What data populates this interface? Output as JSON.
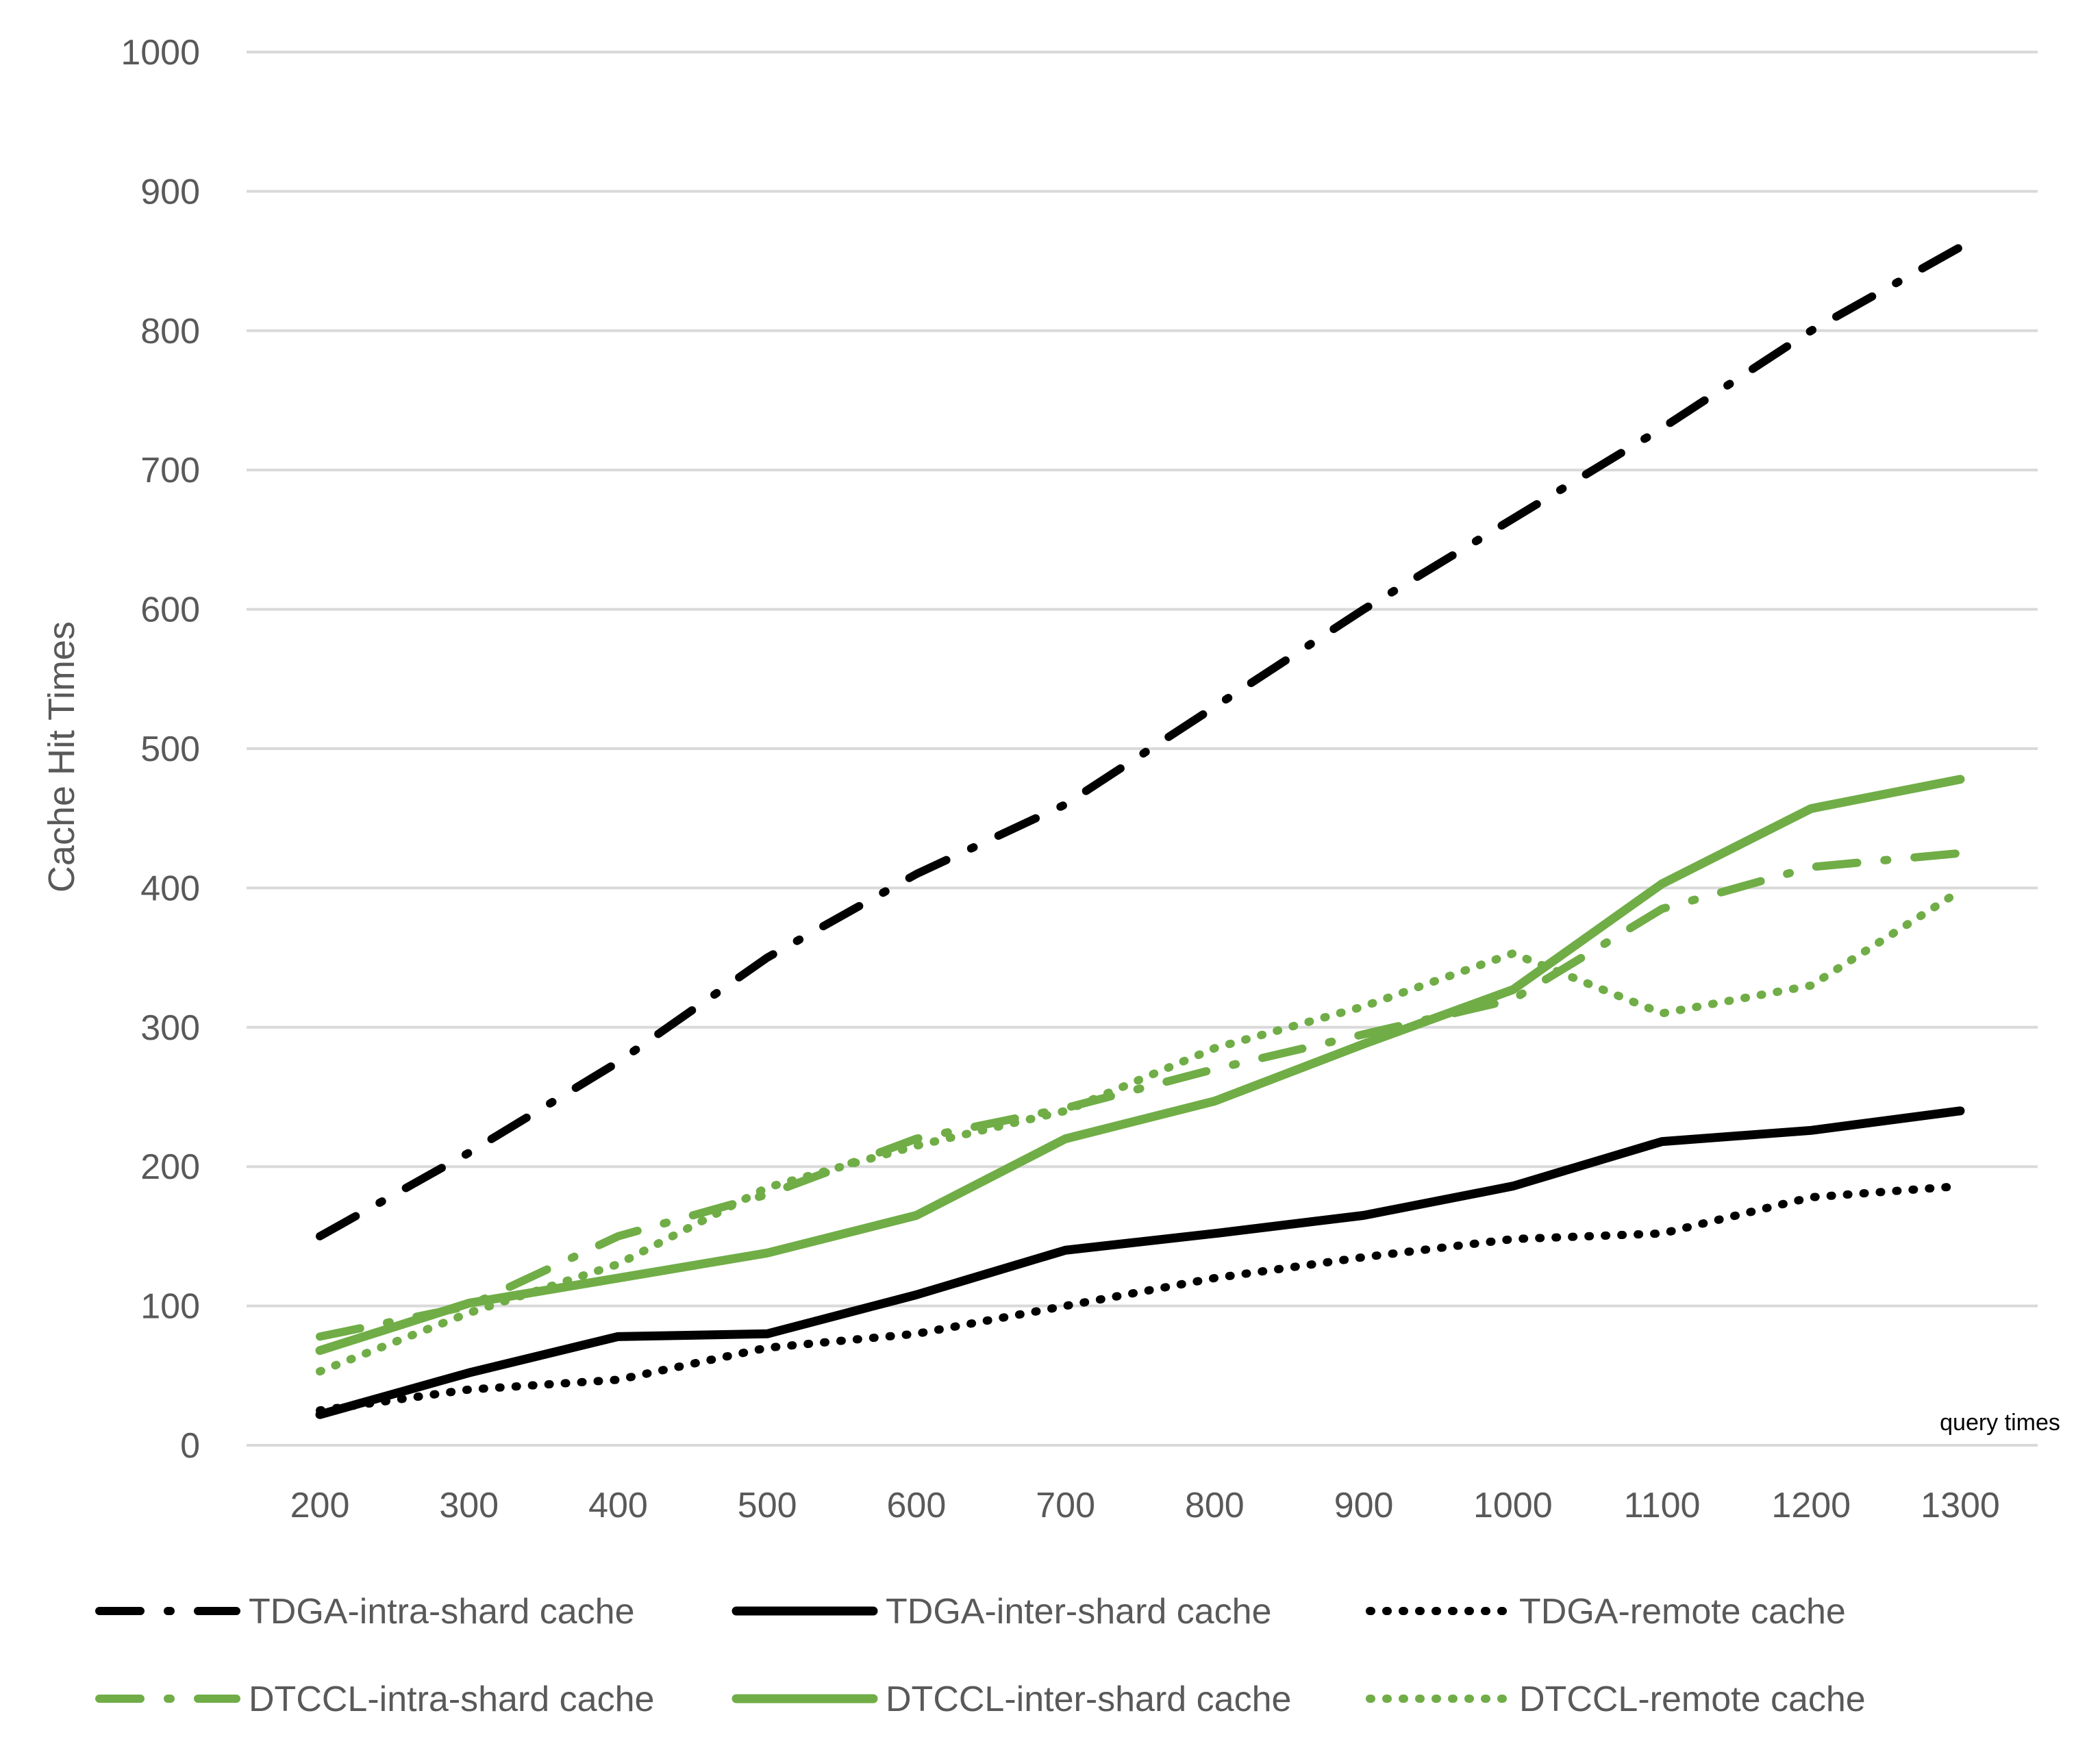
{
  "chart_data": {
    "type": "line",
    "title": "",
    "xlabel": "query times",
    "ylabel": "Cache Hit Times",
    "ylim": [
      0,
      1000
    ],
    "yticks": [
      0,
      100,
      200,
      300,
      400,
      500,
      600,
      700,
      800,
      900,
      1000
    ],
    "categories": [
      "200",
      "300",
      "400",
      "500",
      "600",
      "700",
      "800",
      "900",
      "1000",
      "1100",
      "1200",
      "1300"
    ],
    "grid": true,
    "legend_position": "bottom",
    "series": [
      {
        "name": "TDGA-intra-shard cache",
        "color": "#000000",
        "style": "dash-dot",
        "values": [
          150,
          210,
          275,
          350,
          410,
          460,
          530,
          600,
          665,
          730,
          800,
          860
        ]
      },
      {
        "name": "TDGA-inter-shard cache",
        "color": "#000000",
        "style": "solid",
        "values": [
          22,
          52,
          78,
          80,
          108,
          140,
          152,
          165,
          186,
          218,
          226,
          240
        ]
      },
      {
        "name": "TDGA-remote cache",
        "color": "#000000",
        "style": "dotted",
        "values": [
          25,
          40,
          47,
          70,
          80,
          100,
          120,
          135,
          148,
          152,
          178,
          186
        ]
      },
      {
        "name": "DTCCL-intra-shard cache",
        "color": "#70ad47",
        "style": "dash-dot",
        "values": [
          78,
          100,
          150,
          180,
          220,
          242,
          270,
          295,
          320,
          385,
          415,
          425
        ]
      },
      {
        "name": "DTCCL-inter-shard cache",
        "color": "#70ad47",
        "style": "solid",
        "values": [
          68,
          102,
          120,
          138,
          165,
          220,
          247,
          288,
          327,
          403,
          457,
          478
        ]
      },
      {
        "name": "DTCCL-remote cache",
        "color": "#70ad47",
        "style": "dotted",
        "values": [
          53,
          95,
          130,
          185,
          215,
          240,
          285,
          315,
          353,
          310,
          330,
          398
        ]
      }
    ]
  }
}
